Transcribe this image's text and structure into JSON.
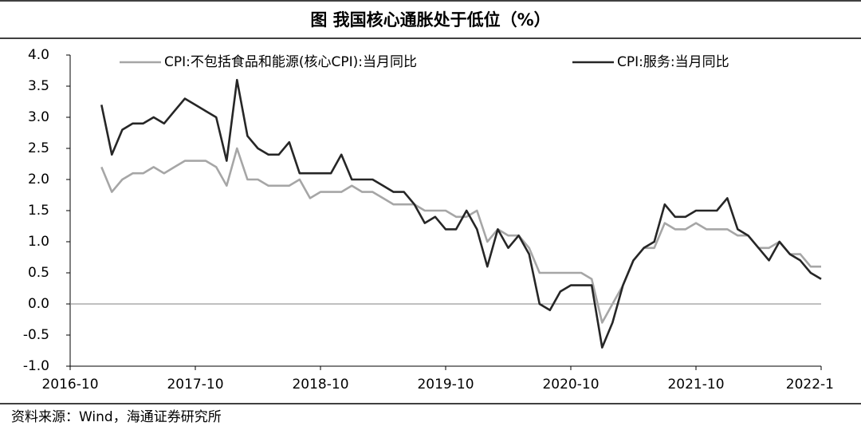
{
  "chart_data": {
    "type": "line",
    "title": "图    我国核心通胀处于低位（%）",
    "source": "资料来源：Wind，海通证券研究所",
    "x": [
      "2017-01",
      "2017-02",
      "2017-03",
      "2017-04",
      "2017-05",
      "2017-06",
      "2017-07",
      "2017-08",
      "2017-09",
      "2017-10",
      "2017-11",
      "2017-12",
      "2018-01",
      "2018-02",
      "2018-03",
      "2018-04",
      "2018-05",
      "2018-06",
      "2018-07",
      "2018-08",
      "2018-09",
      "2018-10",
      "2018-11",
      "2018-12",
      "2019-01",
      "2019-02",
      "2019-03",
      "2019-04",
      "2019-05",
      "2019-06",
      "2019-07",
      "2019-08",
      "2019-09",
      "2019-10",
      "2019-11",
      "2019-12",
      "2020-01",
      "2020-02",
      "2020-03",
      "2020-04",
      "2020-05",
      "2020-06",
      "2020-07",
      "2020-08",
      "2020-09",
      "2020-10",
      "2020-11",
      "2020-12",
      "2021-01",
      "2021-02",
      "2021-03",
      "2021-04",
      "2021-05",
      "2021-06",
      "2021-07",
      "2021-08",
      "2021-09",
      "2021-10",
      "2021-11",
      "2021-12",
      "2022-01",
      "2022-02",
      "2022-03",
      "2022-04",
      "2022-05",
      "2022-06",
      "2022-07",
      "2022-08",
      "2022-09",
      "2022-10"
    ],
    "series": [
      {
        "name": "CPI:不包括食品和能源(核心CPI):当月同比",
        "color": "#a6a6a6",
        "values": [
          2.2,
          1.8,
          2.0,
          2.1,
          2.1,
          2.2,
          2.1,
          2.2,
          2.3,
          2.3,
          2.3,
          2.2,
          1.9,
          2.5,
          2.0,
          2.0,
          1.9,
          1.9,
          1.9,
          2.0,
          1.7,
          1.8,
          1.8,
          1.8,
          1.9,
          1.8,
          1.8,
          1.7,
          1.6,
          1.6,
          1.6,
          1.5,
          1.5,
          1.5,
          1.4,
          1.4,
          1.5,
          1.0,
          1.2,
          1.1,
          1.1,
          0.9,
          0.5,
          0.5,
          0.5,
          0.5,
          0.5,
          0.4,
          -0.3,
          0.0,
          0.3,
          0.7,
          0.9,
          0.9,
          1.3,
          1.2,
          1.2,
          1.3,
          1.2,
          1.2,
          1.2,
          1.1,
          1.1,
          0.9,
          0.9,
          1.0,
          0.8,
          0.8,
          0.6,
          0.6
        ]
      },
      {
        "name": "CPI:服务:当月同比",
        "color": "#262626",
        "values": [
          3.2,
          2.4,
          2.8,
          2.9,
          2.9,
          3.0,
          2.9,
          3.1,
          3.3,
          3.2,
          3.1,
          3.0,
          2.3,
          3.6,
          2.7,
          2.5,
          2.4,
          2.4,
          2.6,
          2.1,
          2.1,
          2.1,
          2.1,
          2.4,
          2.0,
          2.0,
          2.0,
          1.9,
          1.8,
          1.8,
          1.6,
          1.3,
          1.4,
          1.2,
          1.2,
          1.5,
          1.2,
          0.6,
          1.2,
          0.9,
          1.1,
          0.8,
          0.0,
          -0.1,
          0.2,
          0.3,
          0.3,
          0.3,
          -0.7,
          -0.3,
          0.3,
          0.7,
          0.9,
          1.0,
          1.6,
          1.4,
          1.4,
          1.5,
          1.5,
          1.5,
          1.7,
          1.2,
          1.1,
          0.9,
          0.7,
          1.0,
          0.8,
          0.7,
          0.5,
          0.4
        ]
      }
    ],
    "xlim": [
      "2016-10",
      "2022-10"
    ],
    "xticks": [
      "2016-10",
      "2017-10",
      "2018-10",
      "2019-10",
      "2020-10",
      "2021-10",
      {
        "value": "2022-10",
        "label": "2022-1"
      }
    ],
    "ylim": [
      -1.0,
      4.0
    ],
    "yticks": [
      {
        "value": -1.0,
        "label": "-1.0"
      },
      {
        "value": -0.5,
        "label": "-0.5"
      },
      {
        "value": 0.0,
        "label": "0.0"
      },
      {
        "value": 0.5,
        "label": "0.5"
      },
      {
        "value": 1.0,
        "label": "1.0"
      },
      {
        "value": 1.5,
        "label": "1.5"
      },
      {
        "value": 2.0,
        "label": "2.0"
      },
      {
        "value": 2.5,
        "label": "2.5"
      },
      {
        "value": 3.0,
        "label": "3.0"
      },
      {
        "value": 3.5,
        "label": "3.5"
      },
      {
        "value": 4.0,
        "label": "4.0"
      }
    ],
    "grid": false
  }
}
